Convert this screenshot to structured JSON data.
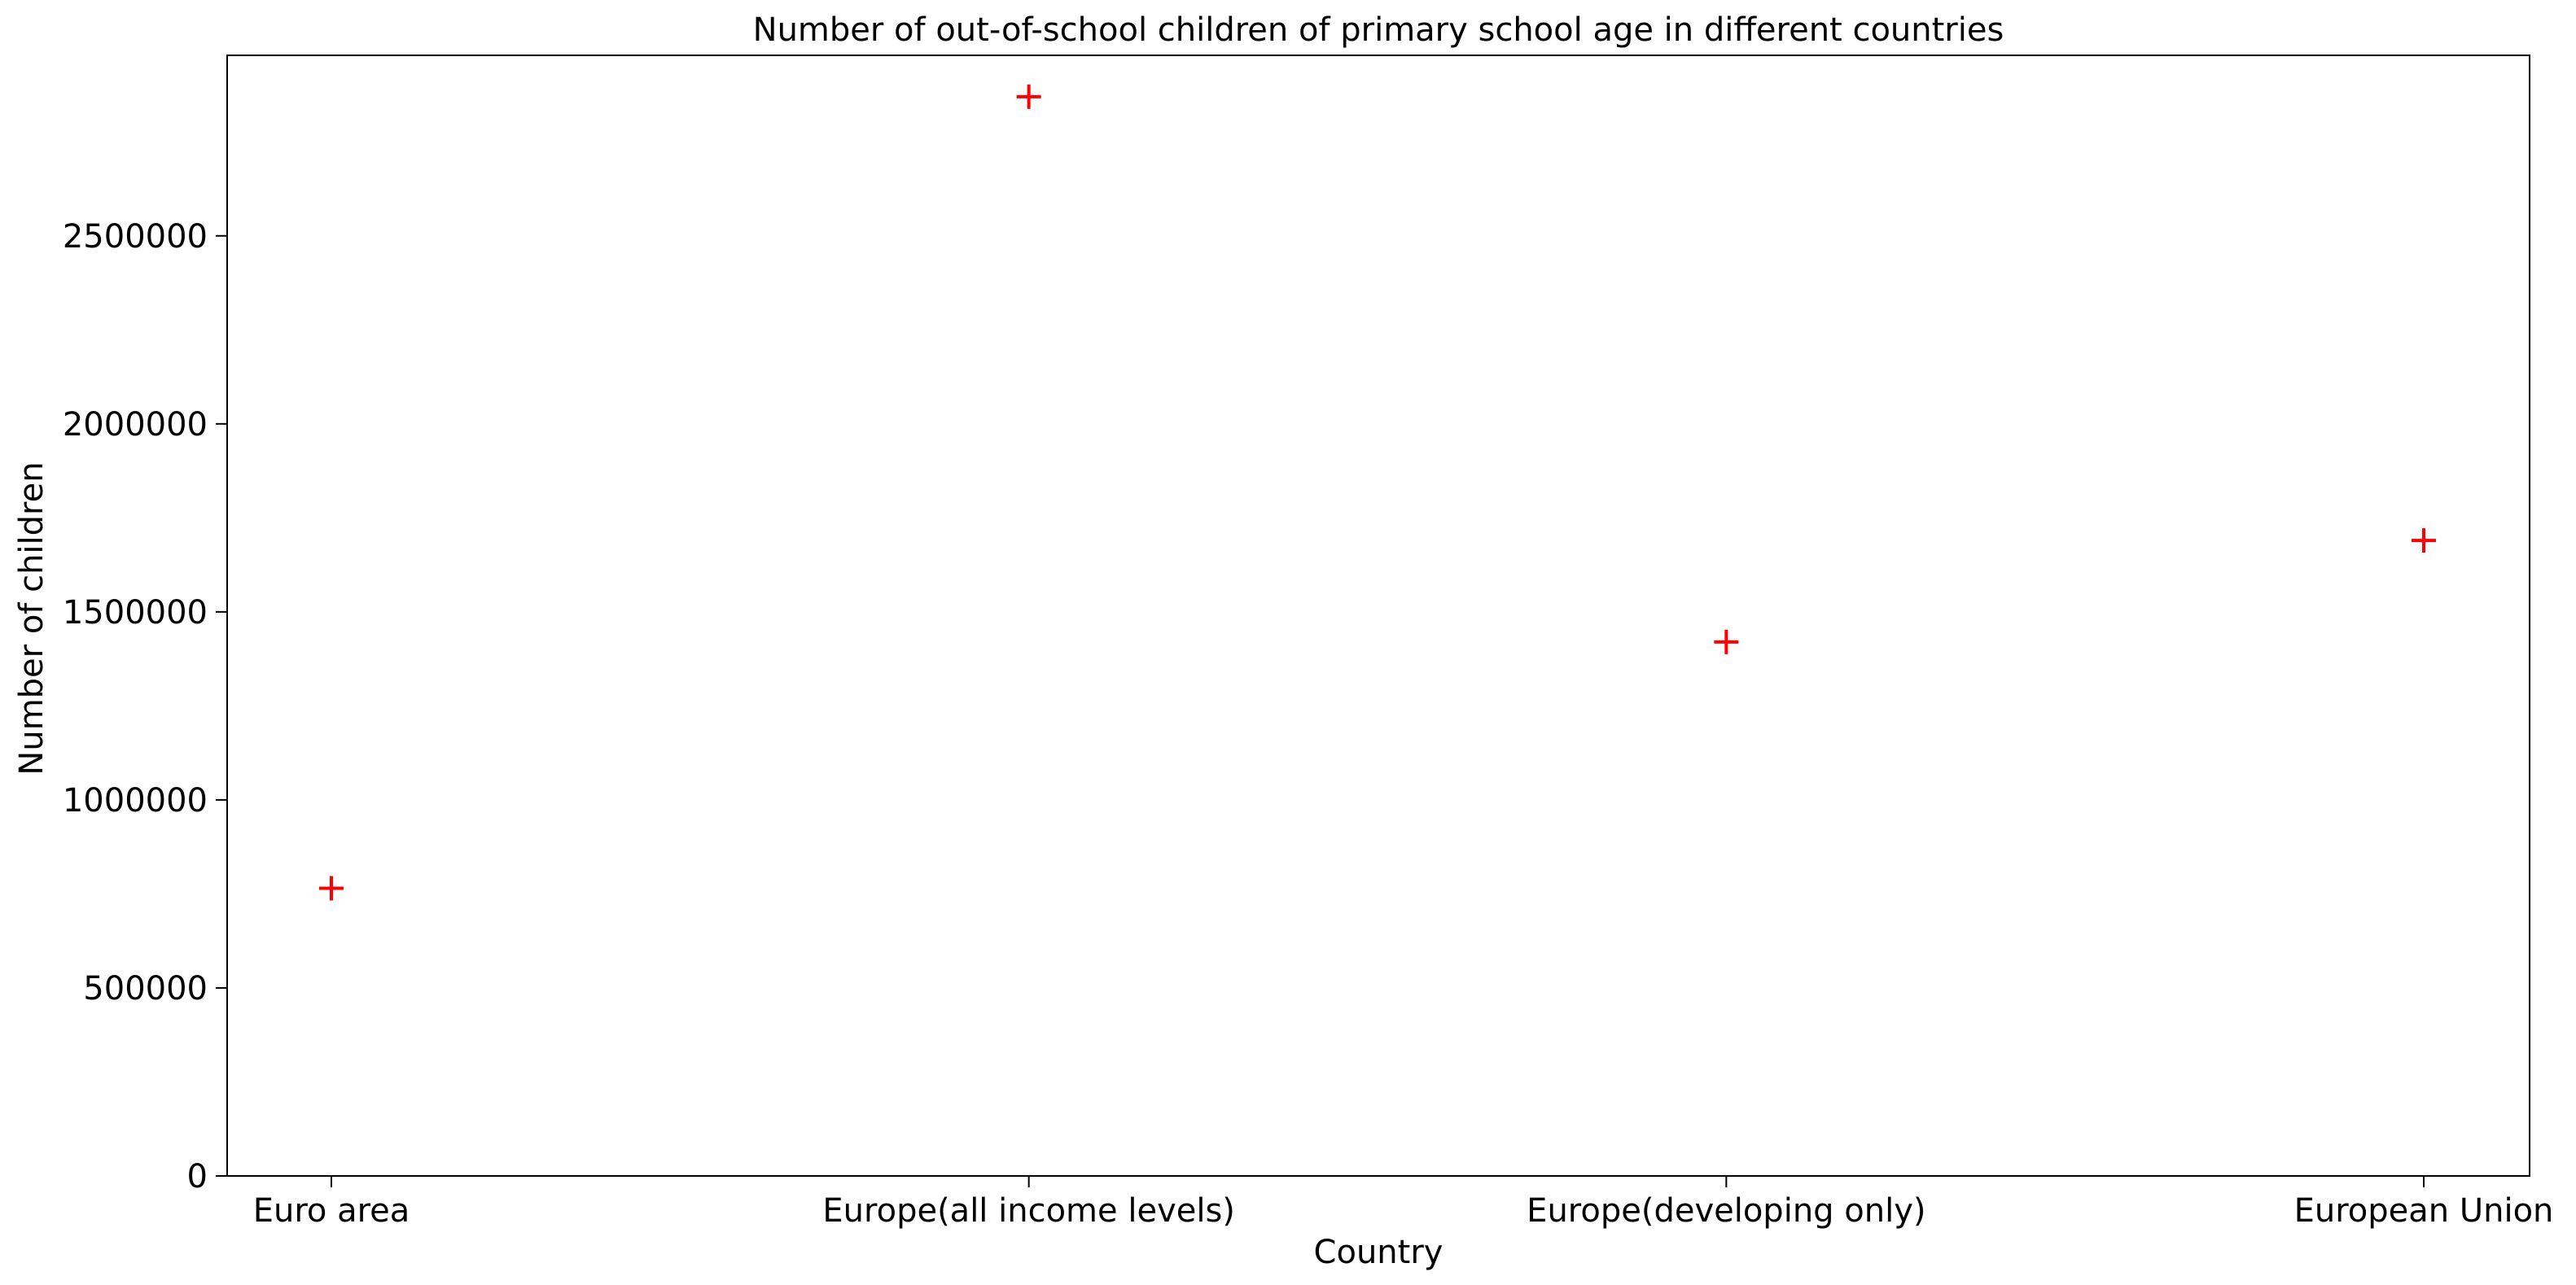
{
  "chart_data": {
    "type": "scatter",
    "title": "Number of out-of-school children of primary school age in different countries",
    "xlabel": "Country",
    "ylabel": "Number of children",
    "categories": [
      "Euro area",
      "Europe(all income levels)",
      "Europe(developing only)",
      "European Union"
    ],
    "series": [
      {
        "values": [
          765000,
          2870000,
          1420000,
          1690000
        ]
      }
    ],
    "ylim": [
      0,
      2980000
    ],
    "yticks": [
      0,
      500000,
      1000000,
      1500000,
      2000000,
      2500000
    ],
    "ytick_labels": [
      "0",
      "500000",
      "1000000",
      "1500000",
      "2000000",
      "2500000"
    ],
    "marker": "plus",
    "marker_color": "#ff0000",
    "grid": false,
    "legend": "none"
  }
}
